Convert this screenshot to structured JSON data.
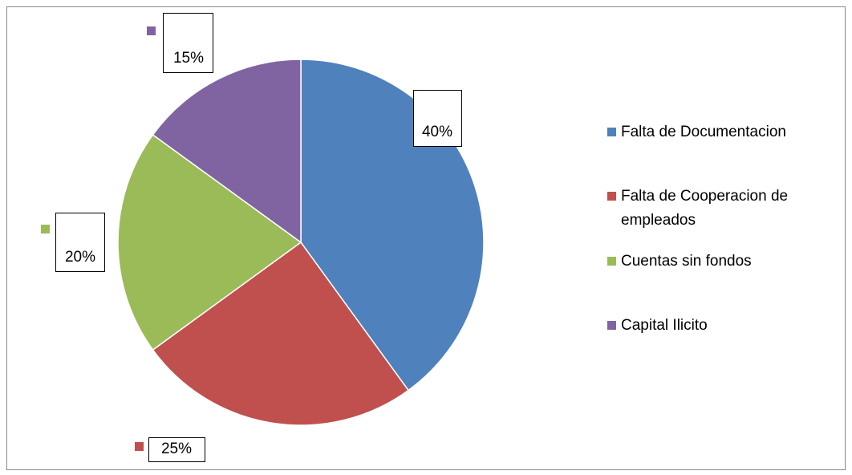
{
  "chart_data": {
    "type": "pie",
    "categories": [
      "Falta de Documentacion",
      "Falta de Cooperacion de empleados",
      "Cuentas sin fondos",
      "Capital Ilicito"
    ],
    "values": [
      40,
      25,
      20,
      15
    ],
    "value_labels": [
      "40%",
      "25%",
      "20%",
      "15%"
    ],
    "colors": [
      "#4f81bd",
      "#c0504d",
      "#9bbb59",
      "#8064a2"
    ],
    "legend": "right"
  }
}
